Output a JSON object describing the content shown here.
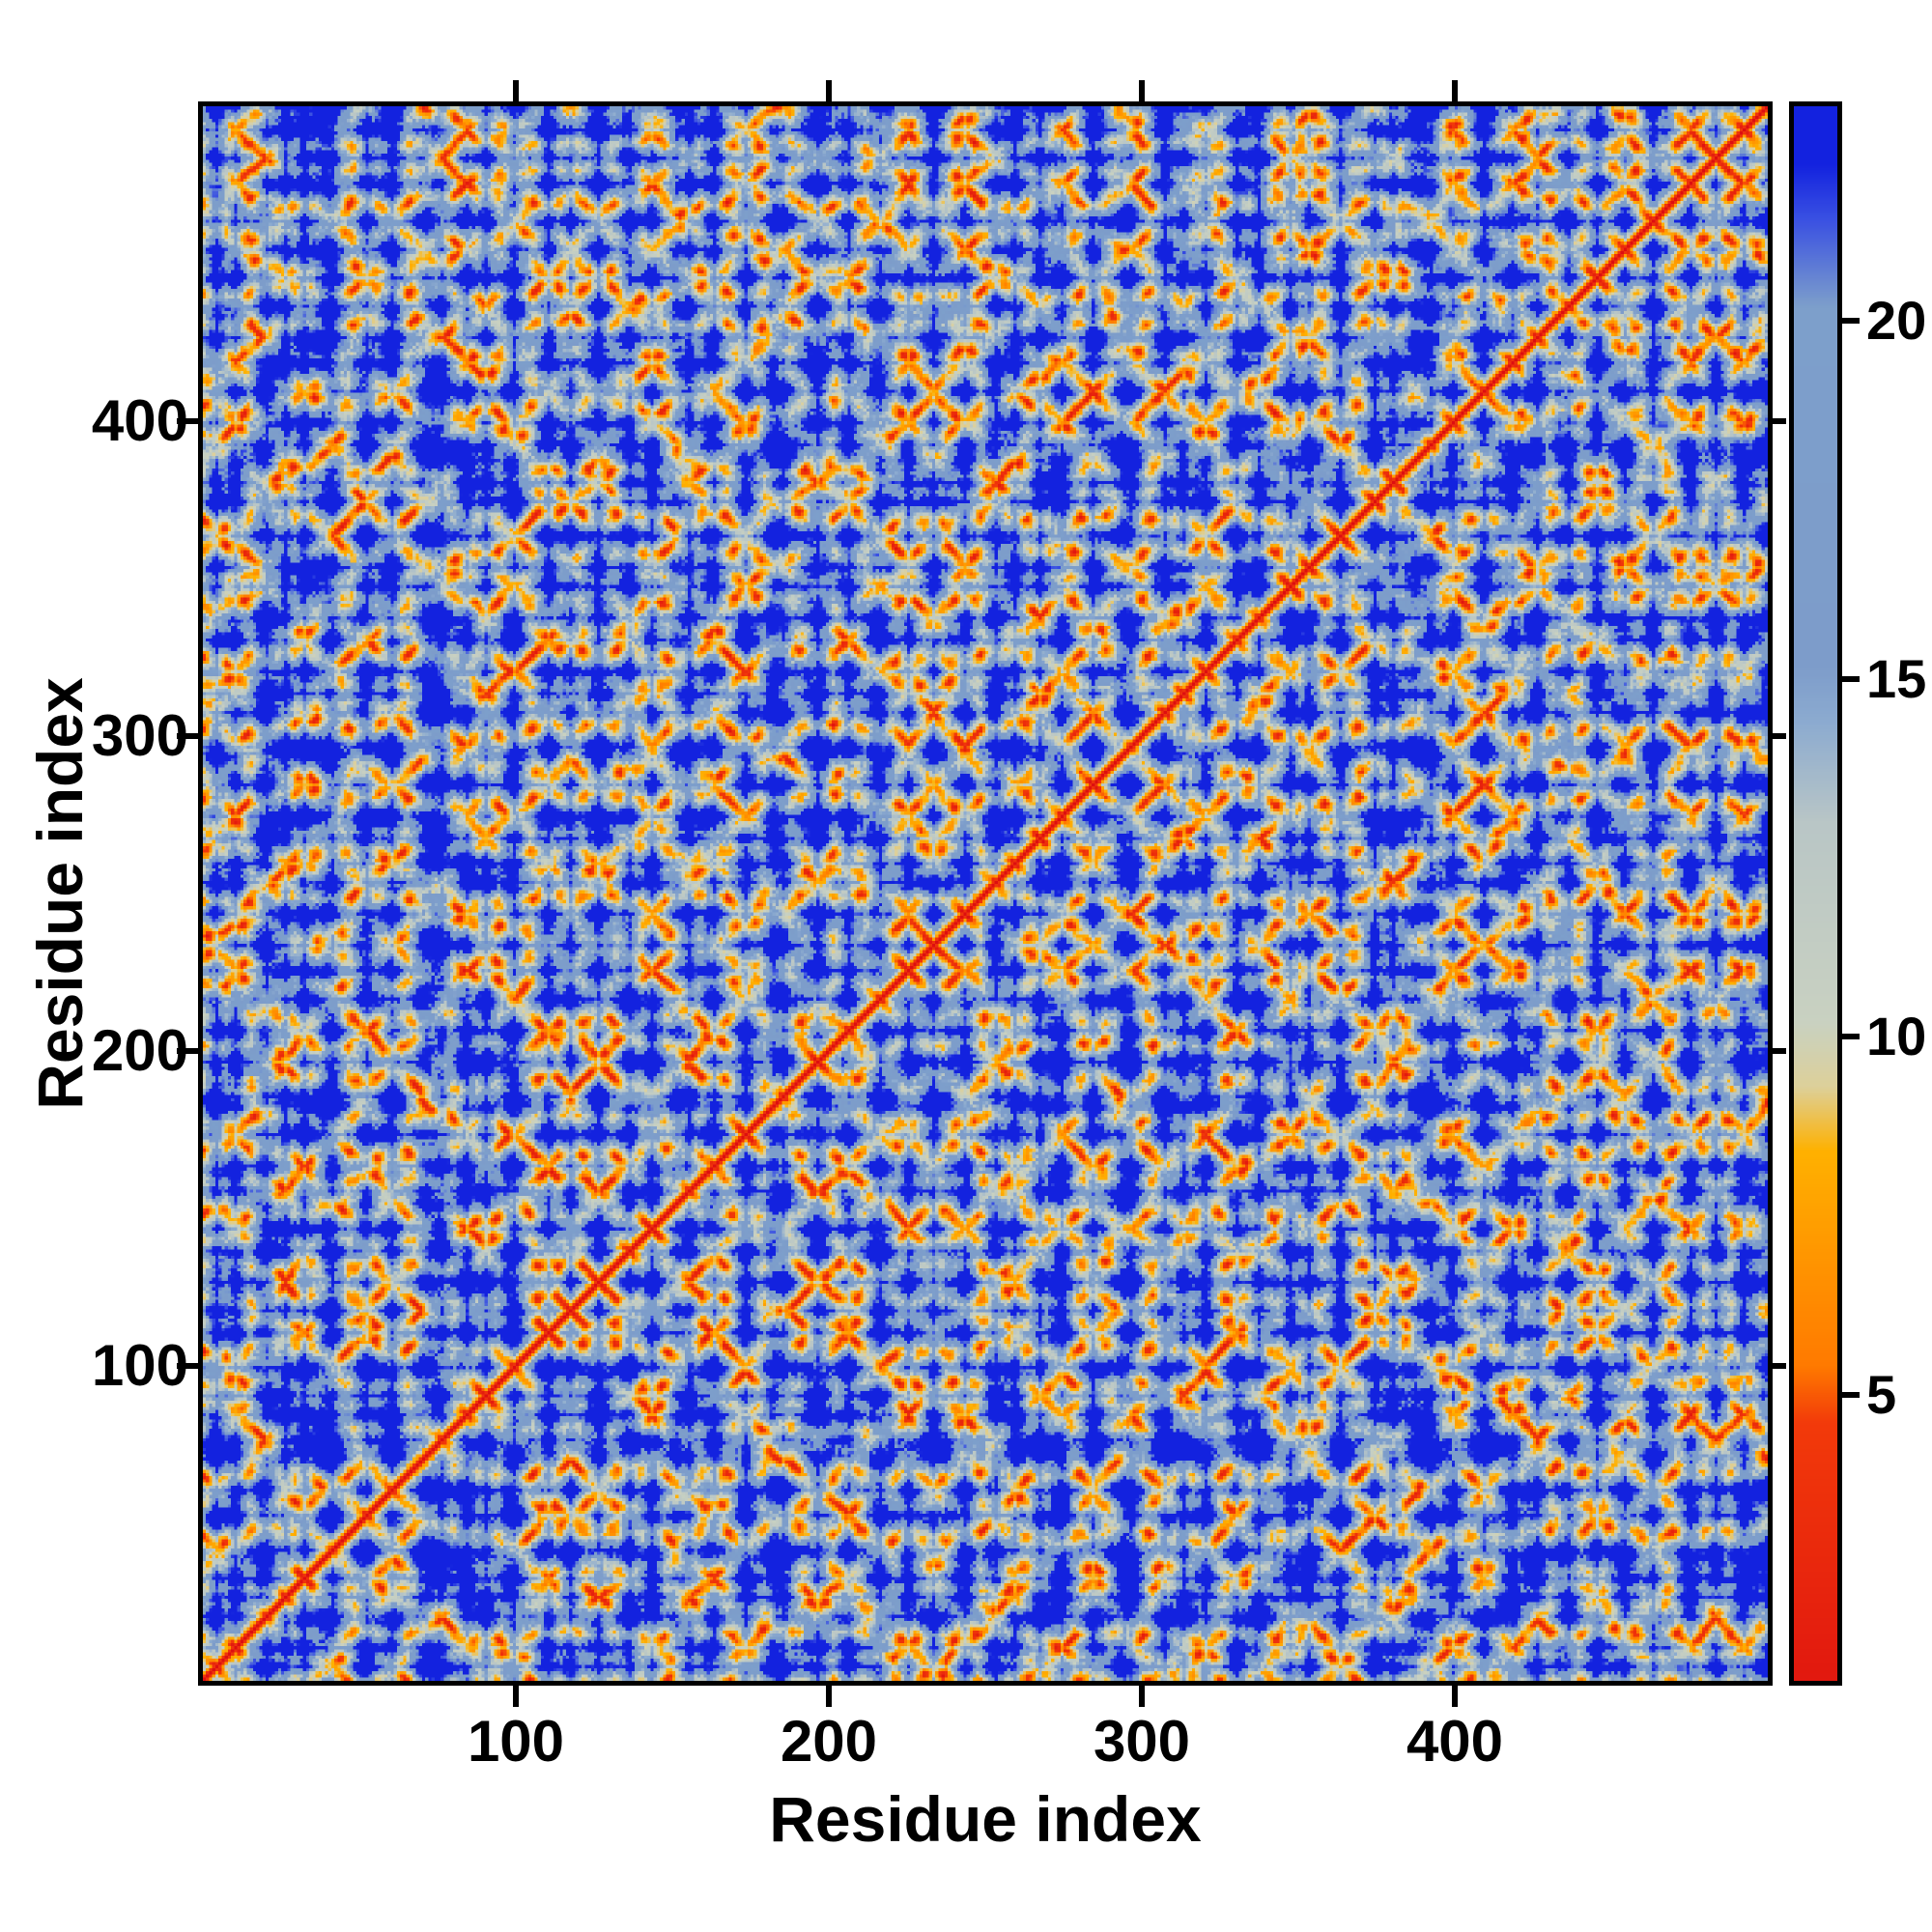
{
  "figure": {
    "xlabel": "Residue index",
    "ylabel": "Residue index"
  },
  "chart_data": {
    "type": "heatmap",
    "title": "",
    "xlabel": "Residue index",
    "ylabel": "Residue index",
    "x_range": [
      1,
      500
    ],
    "y_range": [
      1,
      500
    ],
    "x_ticks": [
      100,
      200,
      300,
      400
    ],
    "y_ticks": [
      100,
      200,
      300,
      400
    ],
    "grid": false,
    "legend": "colorbar-right",
    "description": "Symmetric residue-residue pairwise distance map: red diagonal (zero distance), orange close-contact spots and anti-diagonal streaks, pale band at mid-range distances, steel-blue intermediate distances, deep blue for distant pairs; matrix regenerated procedurally from a compact 3D chain model.",
    "colorbar": {
      "vmin": 1,
      "vmax": 23,
      "ticks": [
        5,
        10,
        15,
        20
      ]
    },
    "colormap_stops": [
      {
        "v": 0.0,
        "c": "#dd0f10"
      },
      {
        "v": 4.6,
        "c": "#f23a0a"
      },
      {
        "v": 5.4,
        "c": "#ff7a00"
      },
      {
        "v": 8.4,
        "c": "#ffb100"
      },
      {
        "v": 9.3,
        "c": "#ddd09a"
      },
      {
        "v": 10.2,
        "c": "#c9d1c1"
      },
      {
        "v": 13.0,
        "c": "#b9c6c6"
      },
      {
        "v": 14.4,
        "c": "#8cabd0"
      },
      {
        "v": 15.2,
        "c": "#7d9cca"
      },
      {
        "v": 20.2,
        "c": "#7d9fcb"
      },
      {
        "v": 21.4,
        "c": "#3b52e2"
      },
      {
        "v": 22.2,
        "c": "#1322df"
      },
      {
        "v": 60.0,
        "c": "#1322df"
      }
    ],
    "generator": {
      "n": 500,
      "seed": 7,
      "step": 3.8,
      "radius": 20,
      "persistence": 0.62,
      "noise": 2.4
    }
  }
}
